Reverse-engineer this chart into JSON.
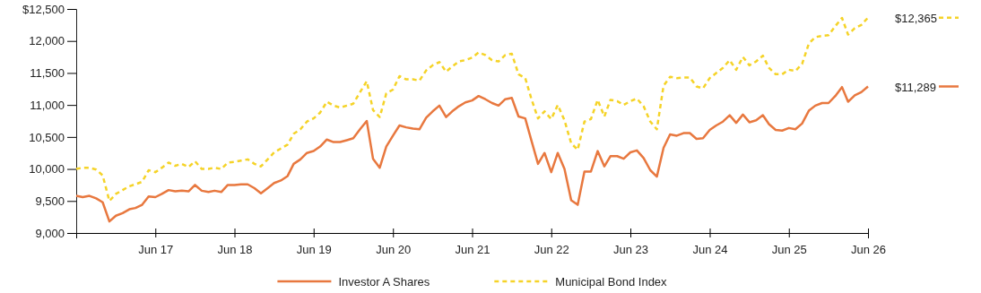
{
  "chart_data": {
    "type": "line",
    "legend": "bottom",
    "x": [
      "2016-06",
      "2016-07",
      "2016-08",
      "2016-09",
      "2016-10",
      "2016-11",
      "2016-12",
      "2017-01",
      "2017-02",
      "2017-03",
      "2017-04",
      "2017-05",
      "2017-06",
      "2017-07",
      "2017-08",
      "2017-09",
      "2017-10",
      "2017-11",
      "2017-12",
      "2018-01",
      "2018-02",
      "2018-03",
      "2018-04",
      "2018-05",
      "2018-06",
      "2018-07",
      "2018-08",
      "2018-09",
      "2018-10",
      "2018-11",
      "2018-12",
      "2019-01",
      "2019-02",
      "2019-03",
      "2019-04",
      "2019-05",
      "2019-06",
      "2019-07",
      "2019-08",
      "2019-09",
      "2019-10",
      "2019-11",
      "2019-12",
      "2020-01",
      "2020-02",
      "2020-03",
      "2020-04",
      "2020-05",
      "2020-06",
      "2020-07",
      "2020-08",
      "2020-09",
      "2020-10",
      "2020-11",
      "2020-12",
      "2021-01",
      "2021-02",
      "2021-03",
      "2021-04",
      "2021-05",
      "2021-06",
      "2021-07",
      "2021-08",
      "2021-09",
      "2021-10",
      "2021-11",
      "2021-12",
      "2022-01",
      "2022-02",
      "2022-03",
      "2022-04",
      "2022-05",
      "2022-06",
      "2022-07",
      "2022-08",
      "2022-09",
      "2022-10",
      "2022-11",
      "2022-12",
      "2023-01",
      "2023-02",
      "2023-03",
      "2023-04",
      "2023-05",
      "2023-06",
      "2023-07",
      "2023-08",
      "2023-09",
      "2023-10",
      "2023-11",
      "2023-12",
      "2024-01",
      "2024-02",
      "2024-03",
      "2024-04",
      "2024-05",
      "2024-06",
      "2024-07",
      "2024-08",
      "2024-09",
      "2024-10",
      "2024-11",
      "2024-12",
      "2025-01",
      "2025-02",
      "2025-03",
      "2025-04",
      "2025-05",
      "2025-06",
      "2025-07",
      "2025-08",
      "2025-09",
      "2025-10",
      "2025-11",
      "2025-12",
      "2026-01",
      "2026-02",
      "2026-03",
      "2026-04",
      "2026-05",
      "2026-06"
    ],
    "xlim": [
      "2016-06",
      "2026-06"
    ],
    "xticks": [
      {
        "value": "2017-06",
        "label": "Jun 17"
      },
      {
        "value": "2018-06",
        "label": "Jun 18"
      },
      {
        "value": "2019-06",
        "label": "Jun 19"
      },
      {
        "value": "2020-06",
        "label": "Jun 20"
      },
      {
        "value": "2021-06",
        "label": "Jun 21"
      },
      {
        "value": "2022-06",
        "label": "Jun 22"
      },
      {
        "value": "2023-06",
        "label": "Jun 23"
      },
      {
        "value": "2024-06",
        "label": "Jun 24"
      },
      {
        "value": "2025-06",
        "label": "Jun 25"
      },
      {
        "value": "2026-06",
        "label": "Jun 26"
      }
    ],
    "ylim": [
      9000,
      12500
    ],
    "yticks": [
      {
        "value": 9000,
        "label": "9,000"
      },
      {
        "value": 9500,
        "label": "9,500"
      },
      {
        "value": 10000,
        "label": "10,000"
      },
      {
        "value": 10500,
        "label": "10,500"
      },
      {
        "value": 11000,
        "label": "11,000"
      },
      {
        "value": 11500,
        "label": "11,500"
      },
      {
        "value": 12000,
        "label": "12,000"
      },
      {
        "value": 12500,
        "label": "$12,500"
      }
    ],
    "series": [
      {
        "name": "Investor A Shares",
        "color": "#e8783f",
        "line_style": "solid",
        "values": [
          9580,
          9560,
          9580,
          9540,
          9480,
          9180,
          9270,
          9310,
          9370,
          9390,
          9440,
          9570,
          9560,
          9610,
          9670,
          9650,
          9660,
          9650,
          9750,
          9660,
          9640,
          9660,
          9640,
          9750,
          9750,
          9760,
          9760,
          9700,
          9620,
          9700,
          9780,
          9820,
          9890,
          10080,
          10150,
          10250,
          10280,
          10350,
          10460,
          10420,
          10420,
          10450,
          10480,
          10620,
          10750,
          10160,
          10020,
          10350,
          10520,
          10680,
          10650,
          10630,
          10620,
          10800,
          10900,
          10990,
          10810,
          10900,
          10980,
          11040,
          11070,
          11140,
          11090,
          11030,
          10990,
          11090,
          11110,
          10820,
          10790,
          10450,
          10080,
          10250,
          9950,
          10250,
          10000,
          9510,
          9440,
          9960,
          9960,
          10280,
          10040,
          10200,
          10200,
          10160,
          10260,
          10290,
          10170,
          9980,
          9880,
          10330,
          10540,
          10520,
          10560,
          10560,
          10470,
          10480,
          10610,
          10680,
          10740,
          10840,
          10720,
          10850,
          10730,
          10760,
          10840,
          10700,
          10610,
          10600,
          10640,
          10620,
          10710,
          10910,
          10990,
          11030,
          11030,
          11140,
          11280,
          11050,
          11150,
          11200,
          11289
        ]
      },
      {
        "name": "Municipal Bond Index",
        "color": "#f5d328",
        "line_style": "dashed",
        "values": [
          10000,
          10020,
          10020,
          9990,
          9900,
          9500,
          9610,
          9670,
          9730,
          9760,
          9800,
          9980,
          9950,
          10020,
          10100,
          10050,
          10080,
          10030,
          10120,
          10000,
          10000,
          10020,
          10000,
          10100,
          10110,
          10130,
          10150,
          10080,
          10040,
          10150,
          10260,
          10320,
          10380,
          10550,
          10620,
          10740,
          10790,
          10880,
          11050,
          10990,
          10960,
          10990,
          11020,
          11200,
          11370,
          10920,
          10810,
          11180,
          11240,
          11450,
          11400,
          11400,
          11380,
          11540,
          11620,
          11670,
          11520,
          11600,
          11680,
          11700,
          11740,
          11820,
          11780,
          11700,
          11680,
          11780,
          11800,
          11480,
          11420,
          11100,
          10790,
          10900,
          10780,
          11000,
          10760,
          10400,
          10300,
          10740,
          10780,
          11080,
          10820,
          11080,
          11060,
          11000,
          11060,
          11100,
          10980,
          10740,
          10620,
          11300,
          11440,
          11420,
          11430,
          11430,
          11290,
          11260,
          11420,
          11500,
          11580,
          11700,
          11550,
          11750,
          11620,
          11680,
          11770,
          11580,
          11480,
          11480,
          11550,
          11530,
          11640,
          11960,
          12060,
          12080,
          12090,
          12230,
          12360,
          12100,
          12200,
          12250,
          12365
        ]
      }
    ],
    "annotations": [
      {
        "text": "$12,365",
        "x": "2026-06",
        "y": 12365
      },
      {
        "text": "$11,289",
        "x": "2026-06",
        "y": 11289
      }
    ]
  }
}
